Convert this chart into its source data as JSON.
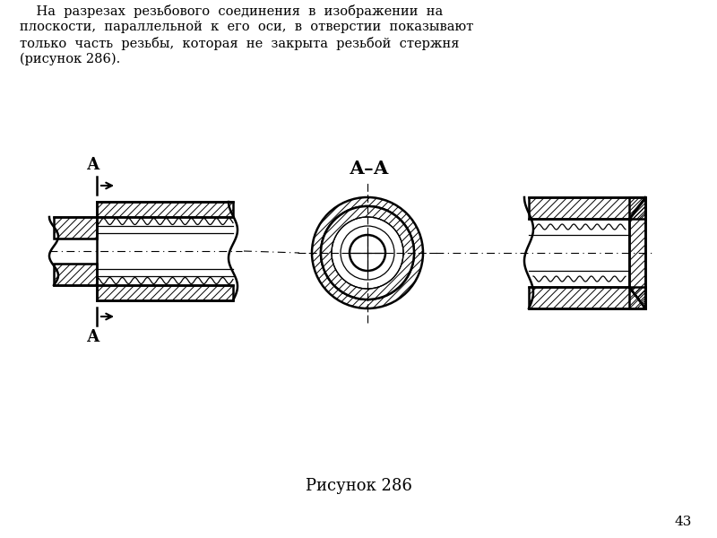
{
  "title_lines": [
    "    На  разрезах  резьбового  соединения  в  изображении  на",
    "плоскости,  параллельной  к  его  оси,  в  отверстии  показывают",
    "только  часть  резьбы,  которая  не  закрыта  резьбой  стержня",
    "(рисунок 286)."
  ],
  "caption": "Рисунок 286",
  "page_number": "43",
  "bg_color": "#ffffff",
  "line_color": "#000000",
  "section_label": "А–А",
  "cut_label": "А"
}
